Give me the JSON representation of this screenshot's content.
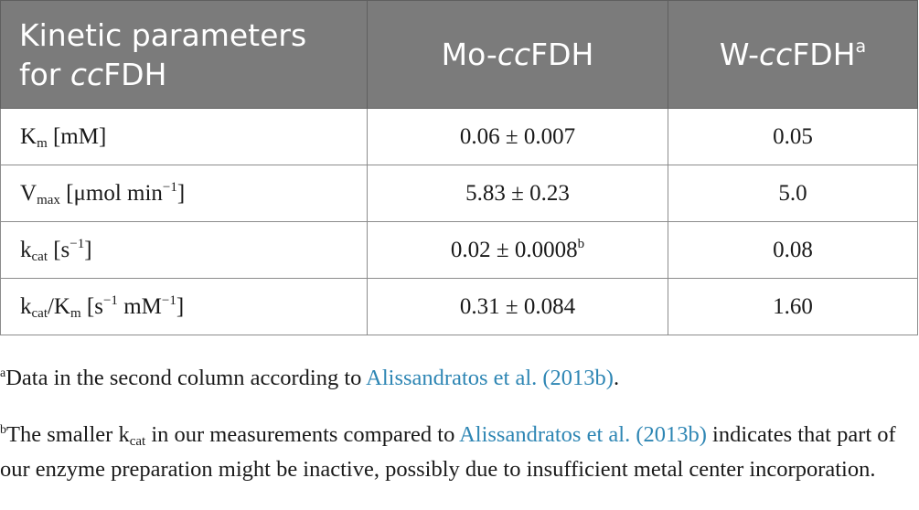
{
  "table": {
    "header": {
      "col1": {
        "line1": "Kinetic parameters",
        "line2_pre": "for ",
        "line2_it": "cc",
        "line2_post": "FDH"
      },
      "col2": {
        "pre": "Mo-",
        "it": "cc",
        "post": "FDH"
      },
      "col3": {
        "pre": "W-",
        "it": "cc",
        "post": "FDH",
        "mark": "a"
      }
    },
    "rows": [
      {
        "sym": "K",
        "sub": "m",
        "unit": " [mM]",
        "mo": "0.06 ± 0.007",
        "w": "0.05"
      },
      {
        "sym": "V",
        "sub": "max",
        "unit": " [μmol min",
        "unit_sup": "−1",
        "unit_end": "]",
        "mo": "5.83 ± 0.23",
        "w": "5.0"
      },
      {
        "sym": "k",
        "sub": "cat",
        "unit": " [s",
        "unit_sup": "−1",
        "unit_end": "]",
        "mo": "0.02 ± 0.0008",
        "mo_mark": "b",
        "w": "0.08"
      },
      {
        "sym": "k",
        "sub": "cat",
        "mid": "/K",
        "sub2": "m",
        "unit": " [s",
        "unit_sup": "−1",
        "unit_mid": " mM",
        "unit_sup2": "−1",
        "unit_end": "]",
        "mo": "0.31 ± 0.084",
        "w": "1.60"
      }
    ]
  },
  "footnotes": {
    "a": {
      "mark": "a",
      "text": "Data in the second column according to ",
      "link": "Alissandratos et al. (2013b)",
      "end": "."
    },
    "b": {
      "mark": "b",
      "pre": "The smaller k",
      "sub": "cat",
      "mid": " in our measurements compared to ",
      "link": "Alissandratos et al. (2013b)",
      "post": " indicates that part of our enzyme preparation might be inactive, possibly due to insufficient metal center incorporation."
    }
  },
  "colors": {
    "header_bg": "#7b7b7b",
    "header_text": "#ffffff",
    "link": "#2e86b4",
    "border": "#8c8c8c"
  }
}
